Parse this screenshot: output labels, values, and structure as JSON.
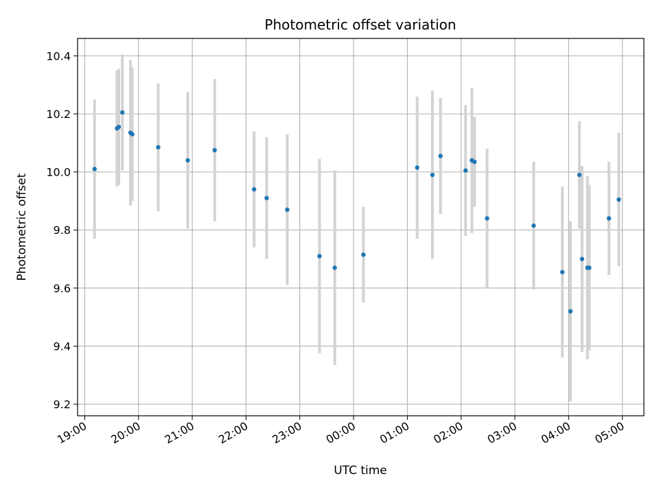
{
  "chart_data": {
    "type": "scatter",
    "title": "Photometric offset variation",
    "xlabel": "UTC time",
    "ylabel": "Photometric offset",
    "x_start": "19:00",
    "x_ticks": [
      "19:00",
      "20:00",
      "21:00",
      "22:00",
      "23:00",
      "00:00",
      "01:00",
      "02:00",
      "03:00",
      "04:00",
      "05:00"
    ],
    "xlim": [
      "18:52",
      "05:24"
    ],
    "y_ticks": [
      9.2,
      9.4,
      9.6,
      9.8,
      10.0,
      10.2,
      10.4
    ],
    "ylim": [
      9.16,
      10.46
    ],
    "grid": true,
    "errorbar_color": "#d3d3d3",
    "point_color": "#1f77b4",
    "points": [
      {
        "time": "19:11",
        "y": 10.01,
        "err": 0.24
      },
      {
        "time": "19:36",
        "y": 10.15,
        "err": 0.2
      },
      {
        "time": "19:38",
        "y": 10.155,
        "err": 0.2
      },
      {
        "time": "19:42",
        "y": 10.205,
        "err": 0.2
      },
      {
        "time": "19:51",
        "y": 10.135,
        "err": 0.25
      },
      {
        "time": "19:53",
        "y": 10.13,
        "err": 0.23
      },
      {
        "time": "20:22",
        "y": 10.085,
        "err": 0.22
      },
      {
        "time": "20:55",
        "y": 10.04,
        "err": 0.235
      },
      {
        "time": "21:25",
        "y": 10.075,
        "err": 0.245
      },
      {
        "time": "22:09",
        "y": 9.94,
        "err": 0.2
      },
      {
        "time": "22:23",
        "y": 9.91,
        "err": 0.21
      },
      {
        "time": "22:46",
        "y": 9.87,
        "err": 0.26
      },
      {
        "time": "23:22",
        "y": 9.71,
        "err": 0.335
      },
      {
        "time": "23:39",
        "y": 9.67,
        "err": 0.335
      },
      {
        "time": "00:11",
        "y": 9.715,
        "err": 0.165
      },
      {
        "time": "01:11",
        "y": 10.015,
        "err": 0.245
      },
      {
        "time": "01:28",
        "y": 9.99,
        "err": 0.29
      },
      {
        "time": "01:37",
        "y": 10.055,
        "err": 0.2
      },
      {
        "time": "02:05",
        "y": 10.005,
        "err": 0.225
      },
      {
        "time": "02:12",
        "y": 10.04,
        "err": 0.25
      },
      {
        "time": "02:15",
        "y": 10.035,
        "err": 0.155
      },
      {
        "time": "02:29",
        "y": 9.84,
        "err": 0.24
      },
      {
        "time": "03:21",
        "y": 9.815,
        "err": 0.22
      },
      {
        "time": "03:53",
        "y": 9.655,
        "err": 0.295
      },
      {
        "time": "04:02",
        "y": 9.52,
        "err": 0.31
      },
      {
        "time": "04:12",
        "y": 9.99,
        "err": 0.185
      },
      {
        "time": "04:15",
        "y": 9.7,
        "err": 0.32
      },
      {
        "time": "04:21",
        "y": 9.67,
        "err": 0.315
      },
      {
        "time": "04:23",
        "y": 9.67,
        "err": 0.285
      },
      {
        "time": "04:45",
        "y": 9.84,
        "err": 0.195
      },
      {
        "time": "04:56",
        "y": 9.905,
        "err": 0.23
      }
    ]
  }
}
